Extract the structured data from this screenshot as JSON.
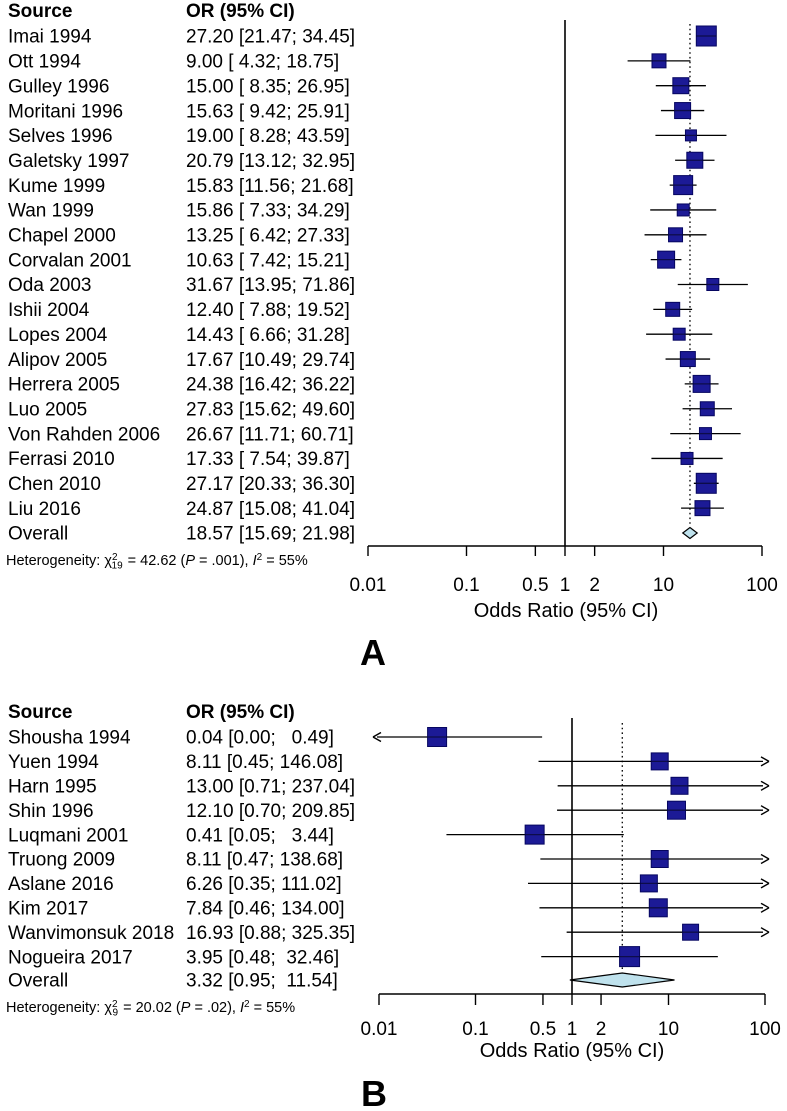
{
  "styles": {
    "marker_fill": "#1c1a96",
    "marker_stroke": "#060660",
    "diamond_fill": "#bfe2ed",
    "diamond_stroke": "#000000",
    "line_color": "#000000",
    "background": "#ffffff"
  },
  "chart_data": [
    {
      "type": "forest",
      "panel_label": "A",
      "xlabel": "Odds Ratio (95% CI)",
      "x_scale": "log10",
      "x_range": [
        0.01,
        100
      ],
      "x_ticks": [
        0.01,
        0.1,
        0.5,
        1,
        2,
        10,
        100
      ],
      "x_tick_labels": [
        "0.01",
        "0.1",
        "0.5",
        "1",
        "2",
        "10",
        "100"
      ],
      "reference_line": 1,
      "columns": {
        "source": "Source",
        "or": "OR (95% CI)"
      },
      "studies": [
        {
          "source": "Imai 1994",
          "or_text": "27.20 [21.47; 34.45]",
          "or": 27.2,
          "low": 21.47,
          "high": 34.45,
          "marker_px": 20
        },
        {
          "source": "Ott 1994",
          "or_text": "9.00 [ 4.32; 18.75]",
          "or": 9.0,
          "low": 4.32,
          "high": 18.75,
          "marker_px": 14
        },
        {
          "source": "Gulley 1996",
          "or_text": "15.00 [ 8.35; 26.95]",
          "or": 15.0,
          "low": 8.35,
          "high": 26.95,
          "marker_px": 16
        },
        {
          "source": "Moritani 1996",
          "or_text": "15.63 [ 9.42; 25.91]",
          "or": 15.63,
          "low": 9.42,
          "high": 25.91,
          "marker_px": 16
        },
        {
          "source": "Selves 1996",
          "or_text": "19.00 [ 8.28; 43.59]",
          "or": 19.0,
          "low": 8.28,
          "high": 43.59,
          "marker_px": 11
        },
        {
          "source": "Galetsky 1997",
          "or_text": "20.79 [13.12; 32.95]",
          "or": 20.79,
          "low": 13.12,
          "high": 32.95,
          "marker_px": 16
        },
        {
          "source": "Kume 1999",
          "or_text": "15.83 [11.56; 21.68]",
          "or": 15.83,
          "low": 11.56,
          "high": 21.68,
          "marker_px": 19
        },
        {
          "source": "Wan 1999",
          "or_text": "15.86 [ 7.33; 34.29]",
          "or": 15.86,
          "low": 7.33,
          "high": 34.29,
          "marker_px": 12
        },
        {
          "source": "Chapel 2000",
          "or_text": "13.25 [ 6.42; 27.33]",
          "or": 13.25,
          "low": 6.42,
          "high": 27.33,
          "marker_px": 14
        },
        {
          "source": "Corvalan 2001",
          "or_text": "10.63 [ 7.42; 15.21]",
          "or": 10.63,
          "low": 7.42,
          "high": 15.21,
          "marker_px": 17
        },
        {
          "source": "Oda 2003",
          "or_text": "31.67 [13.95; 71.86]",
          "or": 31.67,
          "low": 13.95,
          "high": 71.86,
          "marker_px": 12
        },
        {
          "source": "Ishii 2004",
          "or_text": "12.40 [ 7.88; 19.52]",
          "or": 12.4,
          "low": 7.88,
          "high": 19.52,
          "marker_px": 14
        },
        {
          "source": "Lopes 2004",
          "or_text": "14.43 [ 6.66; 31.28]",
          "or": 14.43,
          "low": 6.66,
          "high": 31.28,
          "marker_px": 12
        },
        {
          "source": "Alipov 2005",
          "or_text": "17.67 [10.49; 29.74]",
          "or": 17.67,
          "low": 10.49,
          "high": 29.74,
          "marker_px": 15
        },
        {
          "source": "Herrera 2005",
          "or_text": "24.38 [16.42; 36.22]",
          "or": 24.38,
          "low": 16.42,
          "high": 36.22,
          "marker_px": 17
        },
        {
          "source": "Luo 2005",
          "or_text": "27.83 [15.62; 49.60]",
          "or": 27.83,
          "low": 15.62,
          "high": 49.6,
          "marker_px": 14
        },
        {
          "source": "Von Rahden 2006",
          "or_text": "26.67 [11.71; 60.71]",
          "or": 26.67,
          "low": 11.71,
          "high": 60.71,
          "marker_px": 12
        },
        {
          "source": "Ferrasi 2010",
          "or_text": "17.33 [ 7.54; 39.87]",
          "or": 17.33,
          "low": 7.54,
          "high": 39.87,
          "marker_px": 12
        },
        {
          "source": "Chen 2010",
          "or_text": "27.17 [20.33; 36.30]",
          "or": 27.17,
          "low": 20.33,
          "high": 36.3,
          "marker_px": 20
        },
        {
          "source": "Liu 2016",
          "or_text": "24.87 [15.08; 41.04]",
          "or": 24.87,
          "low": 15.08,
          "high": 41.04,
          "marker_px": 15
        }
      ],
      "overall": {
        "source": "Overall",
        "or_text": "18.57 [15.69; 21.98]",
        "or": 18.57,
        "low": 15.69,
        "high": 21.98
      },
      "heterogeneity": {
        "prefix": "Heterogeneity: χ",
        "chi_sup": "2",
        "chi_sub": "19",
        "stat": " = 42.62 (",
        "p_label": "P",
        "p_rest": " = .001), ",
        "i_label": "I",
        "i_sup": "2",
        "i_rest": " = 55%"
      }
    },
    {
      "type": "forest",
      "panel_label": "B",
      "xlabel": "Odds Ratio (95% CI)",
      "x_scale": "log10",
      "x_range": [
        0.01,
        100
      ],
      "x_ticks": [
        0.01,
        0.1,
        0.5,
        1,
        2,
        10,
        100
      ],
      "x_tick_labels": [
        "0.01",
        "0.1",
        "0.5",
        "1",
        "2",
        "10",
        "100"
      ],
      "reference_line": 1,
      "columns": {
        "source": "Source",
        "or": "OR (95% CI)"
      },
      "studies": [
        {
          "source": "Shousha 1994",
          "or_text": "0.04 [0.00;   0.49]",
          "or": 0.04,
          "low": 0.0,
          "high": 0.49,
          "marker_px": 19,
          "arrow_low": true
        },
        {
          "source": "Yuen 1994",
          "or_text": "8.11 [0.45; 146.08]",
          "or": 8.11,
          "low": 0.45,
          "high": 146.08,
          "marker_px": 17,
          "arrow_high": true
        },
        {
          "source": "Harn 1995",
          "or_text": "13.00 [0.71; 237.04]",
          "or": 13.0,
          "low": 0.71,
          "high": 237.04,
          "marker_px": 17,
          "arrow_high": true
        },
        {
          "source": "Shin 1996",
          "or_text": "12.10 [0.70; 209.85]",
          "or": 12.1,
          "low": 0.7,
          "high": 209.85,
          "marker_px": 18,
          "arrow_high": true
        },
        {
          "source": "Luqmani 2001",
          "or_text": "0.41 [0.05;   3.44]",
          "or": 0.41,
          "low": 0.05,
          "high": 3.44,
          "marker_px": 19
        },
        {
          "source": "Truong 2009",
          "or_text": "8.11 [0.47; 138.68]",
          "or": 8.11,
          "low": 0.47,
          "high": 138.68,
          "marker_px": 17,
          "arrow_high": true
        },
        {
          "source": "Aslane 2016",
          "or_text": "6.26 [0.35; 111.02]",
          "or": 6.26,
          "low": 0.35,
          "high": 111.02,
          "marker_px": 17,
          "arrow_high": true
        },
        {
          "source": "Kim 2017",
          "or_text": "7.84 [0.46; 134.00]",
          "or": 7.84,
          "low": 0.46,
          "high": 134.0,
          "marker_px": 18,
          "arrow_high": true
        },
        {
          "source": "Wanvimonsuk 2018",
          "or_text": "16.93 [0.88; 325.35]",
          "or": 16.93,
          "low": 0.88,
          "high": 325.35,
          "marker_px": 16,
          "arrow_high": true
        },
        {
          "source": "Nogueira 2017",
          "or_text": "3.95 [0.48;  32.46]",
          "or": 3.95,
          "low": 0.48,
          "high": 32.46,
          "marker_px": 20
        }
      ],
      "overall": {
        "source": "Overall",
        "or_text": "3.32 [0.95;  11.54]",
        "or": 3.32,
        "low": 0.95,
        "high": 11.54
      },
      "heterogeneity": {
        "prefix": "Heterogeneity: χ",
        "chi_sup": "2",
        "chi_sub": "9",
        "stat": " = 20.02 (",
        "p_label": "P",
        "p_rest": " = .02), ",
        "i_label": "I",
        "i_sup": "2",
        "i_rest": " = 55%"
      }
    }
  ]
}
